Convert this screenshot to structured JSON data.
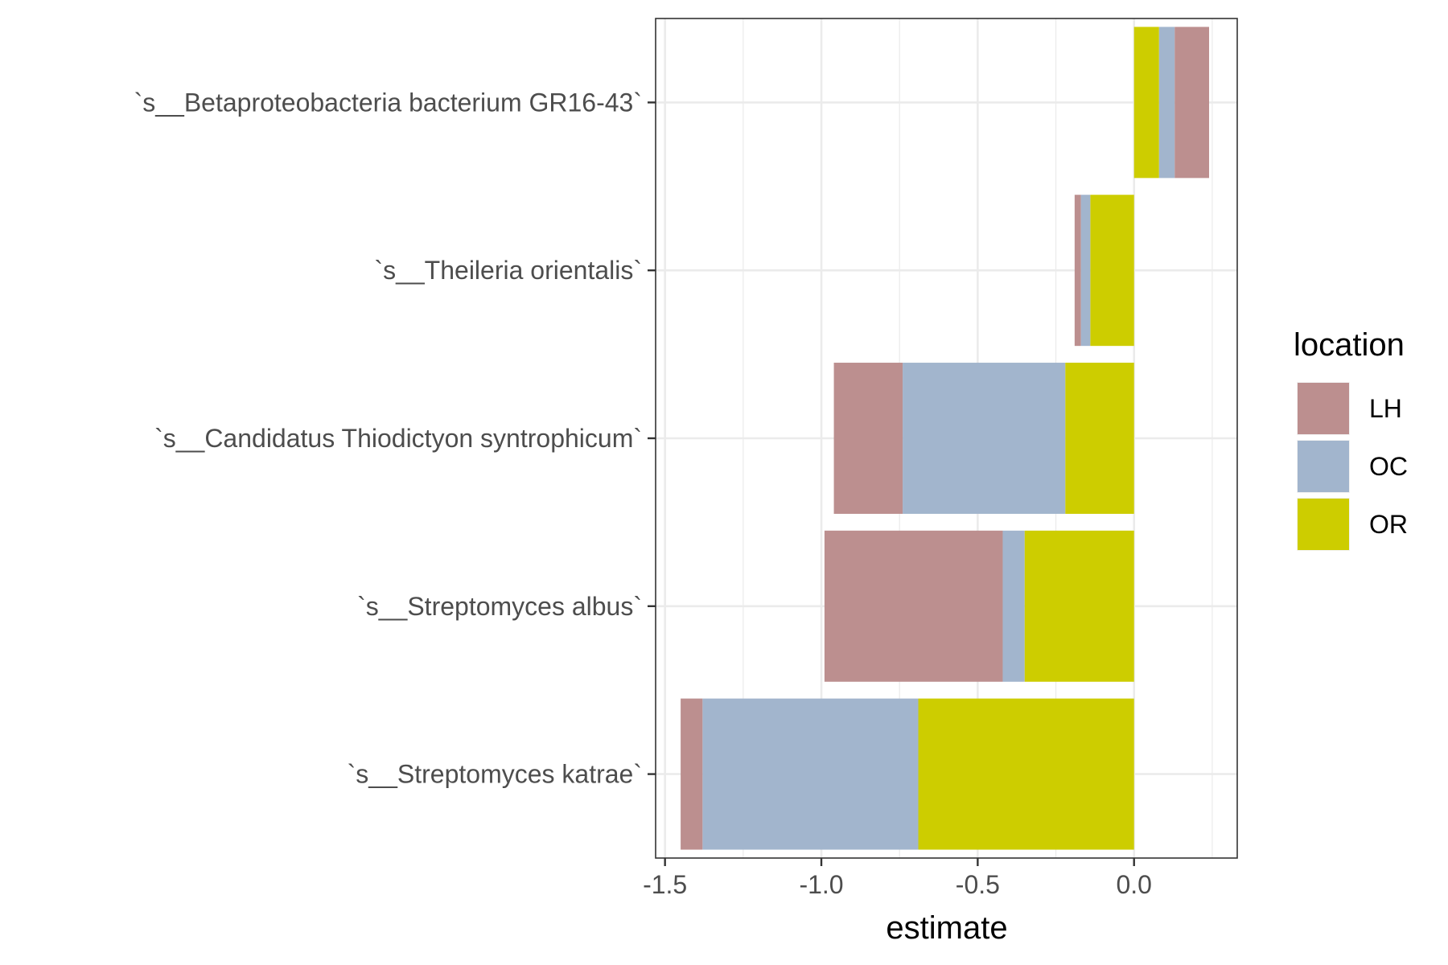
{
  "chart_data": {
    "type": "bar",
    "orientation": "horizontal",
    "stacked": true,
    "title": "",
    "xlabel": "estimate",
    "ylabel": "",
    "xlim": [
      -1.53,
      0.33
    ],
    "x_ticks": [
      -1.5,
      -1.0,
      -0.5,
      0.0
    ],
    "x_tick_labels": [
      "-1.5",
      "-1.0",
      "-0.5",
      "0.0"
    ],
    "grid": true,
    "categories": [
      "`s__Betaproteobacteria bacterium GR16-43`",
      "`s__Theileria orientalis`",
      "`s__Candidatus Thiodictyon syntrophicum`",
      "`s__Streptomyces albus`",
      "`s__Streptomyces katrae`"
    ],
    "series": [
      {
        "name": "LH",
        "color": "#bc8f8f",
        "values": [
          0.11,
          -0.02,
          -0.22,
          -0.57,
          -0.07
        ]
      },
      {
        "name": "OC",
        "color": "#a2b5cd",
        "values": [
          0.05,
          -0.03,
          -0.52,
          -0.07,
          -0.69
        ]
      },
      {
        "name": "OR",
        "color": "#cdcd00",
        "values": [
          0.08,
          -0.14,
          -0.22,
          -0.35,
          -0.69
        ]
      }
    ],
    "stack_order": [
      "OR",
      "OC",
      "LH"
    ],
    "legend": {
      "title": "location",
      "position": "right"
    }
  }
}
